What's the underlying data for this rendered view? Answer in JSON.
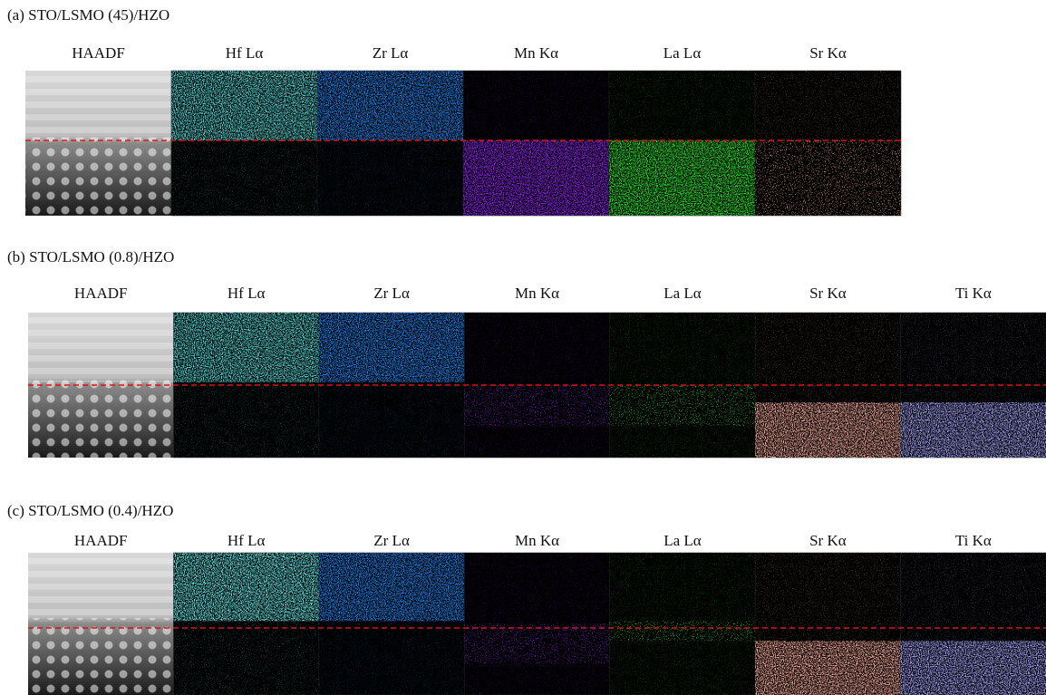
{
  "panels": [
    {
      "title": "(a) STO/LSMO (45)/HZO",
      "labels": [
        "HAADF",
        "Hf Lα",
        "Zr Lα",
        "Mn Kα",
        "La Lα",
        "Sr Kα"
      ]
    },
    {
      "title": "(b) STO/LSMO (0.8)/HZO",
      "labels": [
        "HAADF",
        "Hf Lα",
        "Zr Lα",
        "Mn Kα",
        "La Lα",
        "Sr Kα",
        "Ti Kα"
      ]
    },
    {
      "title": "(c) STO/LSMO (0.4)/HZO",
      "labels": [
        "HAADF",
        "Hf Lα",
        "Zr Lα",
        "Mn Kα",
        "La Lα",
        "Sr Kα",
        "Ti Kα"
      ]
    }
  ]
}
